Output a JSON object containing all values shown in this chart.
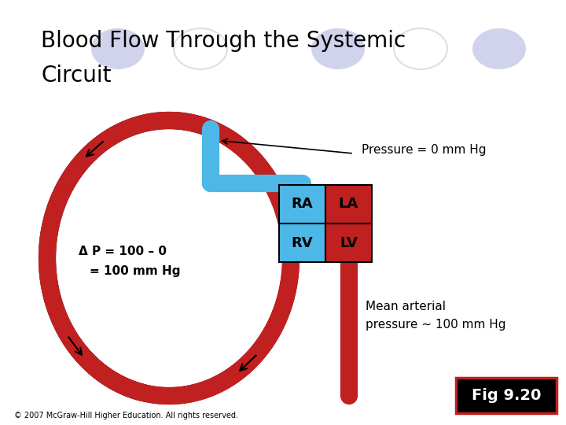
{
  "title_line1": "Blood Flow Through the Systemic",
  "title_line2": "Circuit",
  "title_fontsize": 20,
  "background_color": "#ffffff",
  "blue_color": "#4db8e8",
  "red_color": "#c02020",
  "dark_purple": "#4a1060",
  "fig_label": "Fig 9.20",
  "copyright": "© 2007 McGraw-Hill Higher Education. All rights reserved.",
  "bubble_color": "#c8cce8",
  "bubble_outline": "#d0d0e0",
  "pressure_label": "Pressure = 0 mm Hg",
  "delta_p_line1": "Δ P = 100 – 0",
  "delta_p_line2": "= 100 mm Hg",
  "mean_art_line1": "Mean arterial",
  "mean_art_line2": "pressure ~ 100 mm Hg"
}
